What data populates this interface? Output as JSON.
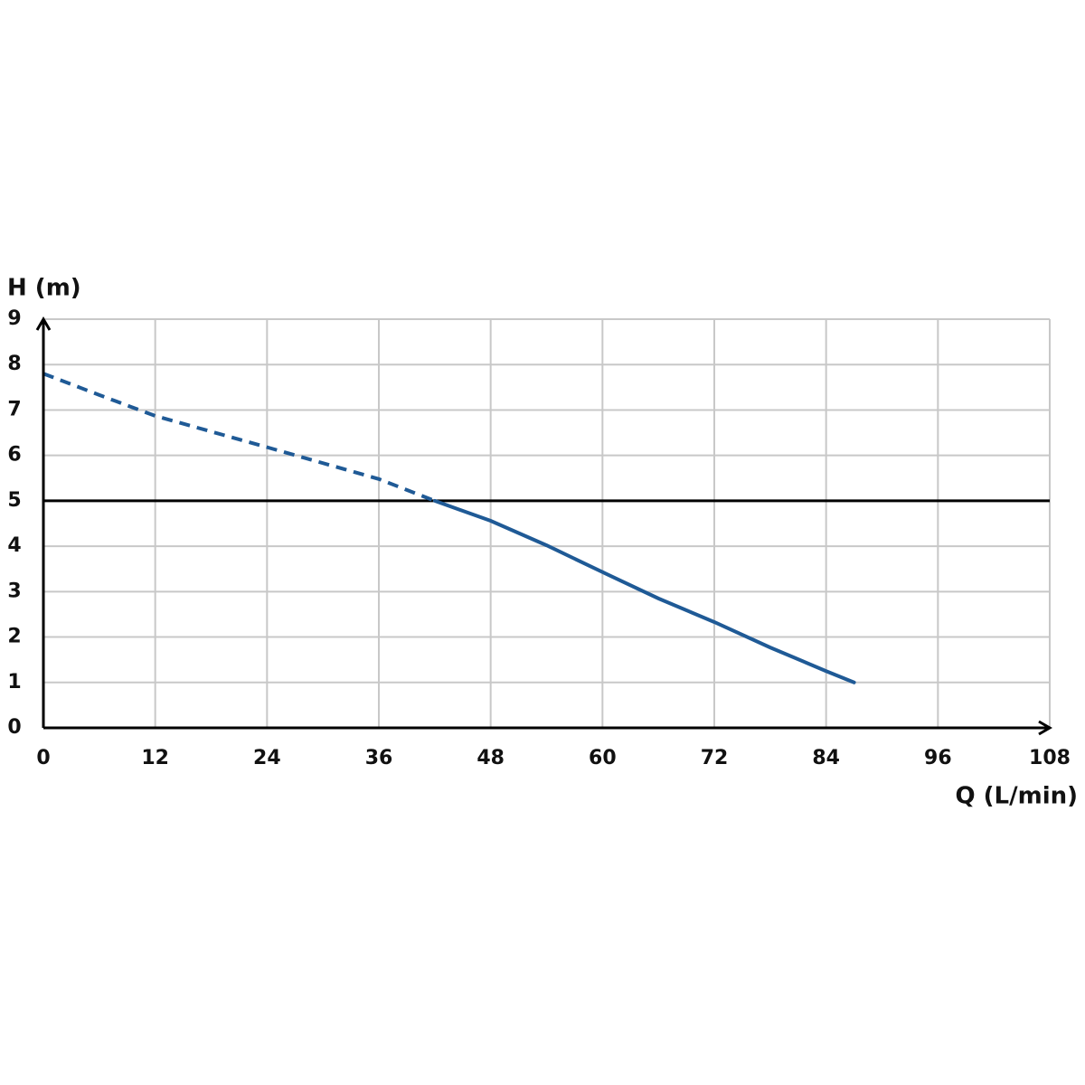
{
  "chart_data": {
    "type": "line",
    "y_label": "H (m)",
    "x_label": "Q (L/min)",
    "xlim": [
      0,
      108
    ],
    "xticks": [
      0,
      12,
      24,
      36,
      48,
      60,
      72,
      84,
      96,
      108
    ],
    "ylim": [
      0,
      9
    ],
    "yticks": [
      0,
      1,
      2,
      3,
      4,
      5,
      6,
      7,
      8,
      9
    ],
    "grid": true,
    "grid_color": "#c8c8c8",
    "reference_line": {
      "value": 5,
      "color": "#000000"
    },
    "series": [
      {
        "color": "#1f5a96",
        "dashed": true,
        "x": [
          0,
          6,
          12,
          24,
          36,
          42
        ],
        "values": [
          7.8,
          7.33,
          6.87,
          6.18,
          5.48,
          5.0
        ]
      },
      {
        "color": "#1f5a96",
        "dashed": false,
        "x": [
          42,
          48,
          54,
          60,
          66,
          72,
          78,
          84,
          87
        ],
        "values": [
          5.0,
          4.56,
          4.02,
          3.43,
          2.85,
          2.33,
          1.77,
          1.25,
          1.0
        ]
      }
    ]
  }
}
